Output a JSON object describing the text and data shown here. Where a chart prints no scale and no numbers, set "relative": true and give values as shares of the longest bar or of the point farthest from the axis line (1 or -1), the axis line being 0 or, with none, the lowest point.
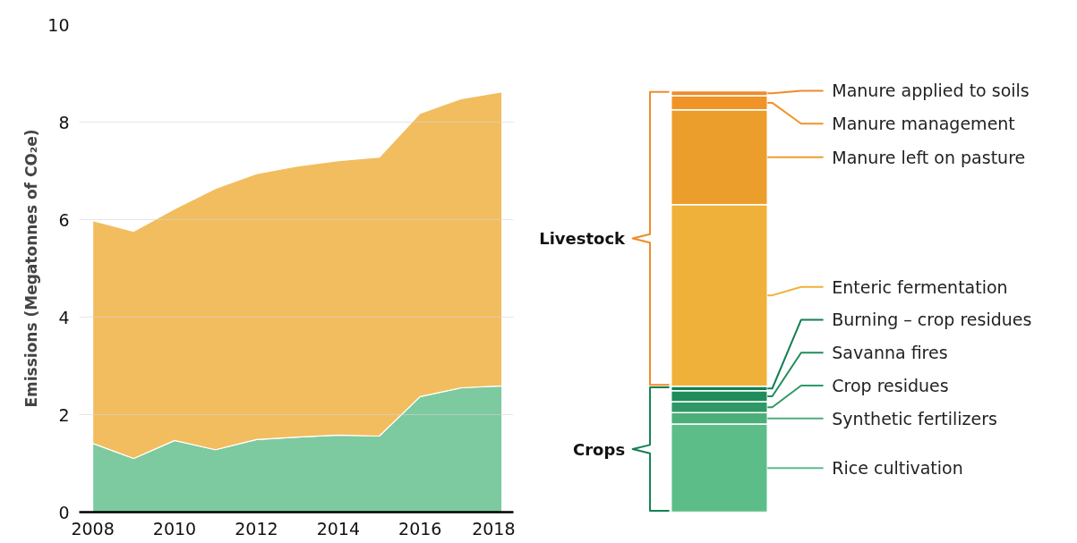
{
  "chart_data": [
    {
      "type": "area",
      "stacked": true,
      "x": [
        2008,
        2009,
        2010,
        2011,
        2012,
        2013,
        2014,
        2015,
        2016,
        2017,
        2018
      ],
      "series": [
        {
          "color": "#7dc9a0",
          "values": [
            1.41,
            1.1,
            1.47,
            1.28,
            1.49,
            1.54,
            1.58,
            1.56,
            2.37,
            2.55,
            2.59
          ]
        },
        {
          "color": "#f2bd5f",
          "values": [
            4.57,
            4.66,
            4.75,
            5.36,
            5.45,
            5.56,
            5.63,
            5.72,
            5.81,
            5.93,
            6.03
          ]
        }
      ],
      "xlim": [
        2007.67,
        2018.28
      ],
      "xticks": [
        2008,
        2010,
        2012,
        2014,
        2016,
        2018
      ],
      "ylim": [
        0,
        10
      ],
      "yticks": [
        0,
        2,
        4,
        6,
        8,
        10
      ],
      "ylabel": "Emissions (Megatonnes of CO₂e)",
      "grid": "y"
    },
    {
      "type": "bar",
      "stacked": true,
      "relative": true,
      "categories": [
        null
      ],
      "series": [
        {
          "name": "Rice cultivation",
          "color": "#5dbd89",
          "values": [
            0.209
          ]
        },
        {
          "name": "Synthetic fertilizers",
          "color": "#4cae7b",
          "values": [
            0.027
          ]
        },
        {
          "name": "Crop residues",
          "color": "#2f9866",
          "values": [
            0.026
          ]
        },
        {
          "name": "Savanna fires",
          "color": "#1e8d5b",
          "values": [
            0.026
          ]
        },
        {
          "name": "Burning – crop residues",
          "color": "#138051",
          "values": [
            0.011
          ]
        },
        {
          "name": "Enteric fermentation",
          "color": "#f0b13a",
          "values": [
            0.431
          ]
        },
        {
          "name": "Manure left on pasture",
          "color": "#ec9e2c",
          "values": [
            0.225
          ]
        },
        {
          "name": "Manure management",
          "color": "#f09428",
          "values": [
            0.033
          ]
        },
        {
          "name": "Manure applied to soils",
          "color": "#ee8c2a",
          "values": [
            0.012
          ]
        }
      ],
      "legend": "right",
      "annotations": [
        "Livestock",
        "Crops"
      ]
    }
  ]
}
